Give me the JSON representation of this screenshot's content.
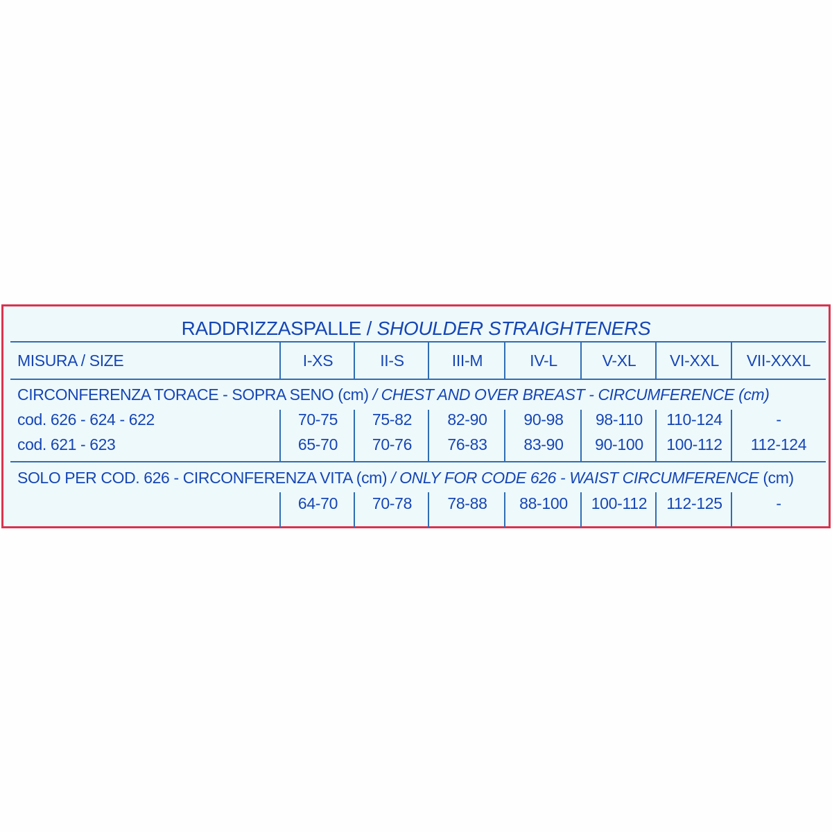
{
  "title": {
    "main": "RADDRIZZASPALLE / ",
    "italic": "SHOULDER STRAIGHTENERS"
  },
  "header": {
    "label": "MISURA / SIZE",
    "sizes": [
      "I-XS",
      "II-S",
      "III-M",
      "IV-L",
      "V-XL",
      "VI-XXL",
      "VII-XXXL"
    ]
  },
  "chest": {
    "label_it": "CIRCONFERENZA TORACE - SOPRA SENO (cm)",
    "label_en": " / CHEST AND OVER BREAST - CIRCUMFERENCE (cm)",
    "rows": [
      {
        "code": "cod. 626 - 624 - 622",
        "values": [
          "70-75",
          "75-82",
          "82-90",
          "90-98",
          "98-110",
          "110-124",
          "-"
        ]
      },
      {
        "code": "cod. 621 - 623",
        "values": [
          "65-70",
          "70-76",
          "76-83",
          "83-90",
          "90-100",
          "100-112",
          "112-124"
        ]
      }
    ]
  },
  "waist": {
    "label_it": "SOLO PER COD. 626 - CIRCONFERENZA VITA (cm) ",
    "label_en": " / ONLY FOR CODE 626 - WAIST CIRCUMFERENCE",
    "label_unit": " (cm)",
    "values": [
      "64-70",
      "70-78",
      "78-88",
      "88-100",
      "100-112",
      "112-125",
      "-"
    ]
  },
  "colors": {
    "border": "#d8334f",
    "text": "#1646b4",
    "lines": "#2f6db3",
    "background": "#eef9fc"
  }
}
